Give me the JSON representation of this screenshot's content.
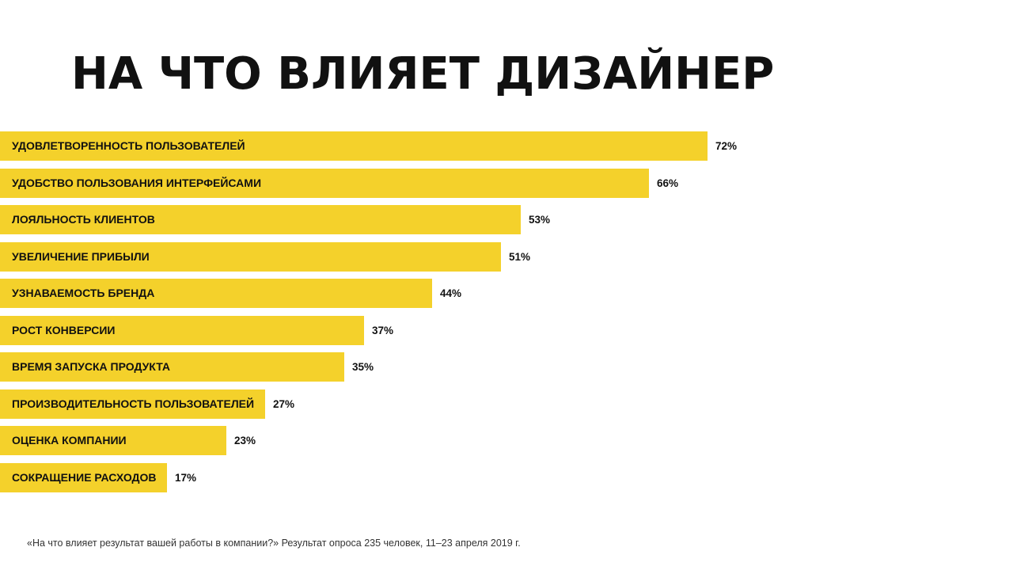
{
  "title": "НА ЧТО ВЛИЯЕТ ДИЗАЙНЕР",
  "footnote": "«На что влияет результат вашей работы в компании?» Результат опроса 235 человек, 11–23 апреля 2019 г.",
  "colors": {
    "bar": "#F4D12B",
    "text": "#111111",
    "background": "#FFFFFF"
  },
  "chart_data": {
    "type": "bar",
    "orientation": "horizontal",
    "title": "НА ЧТО ВЛИЯЕТ ДИЗАЙНЕР",
    "xlabel": "",
    "ylabel": "",
    "xlim": [
      0,
      100
    ],
    "grid": false,
    "legend": "none",
    "categories": [
      "УДОВЛЕТВОРЕННОСТЬ ПОЛЬЗОВАТЕЛЕЙ",
      "УДОБСТВО ПОЛЬЗОВАНИЯ ИНТЕРФЕЙСАМИ",
      "ЛОЯЛЬНОСТЬ КЛИЕНТОВ",
      "УВЕЛИЧЕНИЕ ПРИБЫЛИ",
      "УЗНАВАЕМОСТЬ БРЕНДА",
      "РОСТ КОНВЕРСИИ",
      "ВРЕМЯ ЗАПУСКА ПРОДУКТА",
      "ПРОИЗВОДИТЕЛЬНОСТЬ ПОЛЬЗОВАТЕЛЕЙ",
      "ОЦЕНКА КОМПАНИИ",
      "СОКРАЩЕНИЕ РАСХОДОВ"
    ],
    "values": [
      72,
      66,
      53,
      51,
      44,
      37,
      35,
      27,
      23,
      17
    ],
    "value_labels": [
      "72%",
      "66%",
      "53%",
      "51%",
      "44%",
      "37%",
      "35%",
      "27%",
      "23%",
      "17%"
    ]
  }
}
